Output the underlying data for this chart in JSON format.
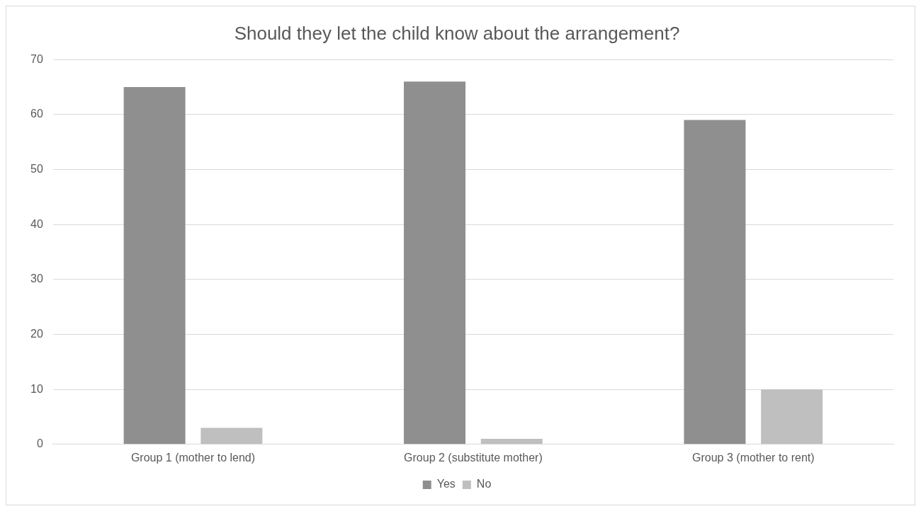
{
  "chart_data": {
    "type": "bar",
    "title": "Should they let the child know about the arrangement?",
    "categories": [
      "Group 1 (mother to lend)",
      "Group 2 (substitute mother)",
      "Group 3 (mother to rent)"
    ],
    "series": [
      {
        "name": "Yes",
        "color": "#8f8f8f",
        "values": [
          65,
          66,
          59
        ]
      },
      {
        "name": "No",
        "color": "#bfbfbf",
        "values": [
          3,
          1,
          10
        ]
      }
    ],
    "ylim": [
      0,
      70
    ],
    "yticks": [
      0,
      10,
      20,
      30,
      40,
      50,
      60,
      70
    ],
    "grid": "y",
    "legend": "bottom"
  }
}
